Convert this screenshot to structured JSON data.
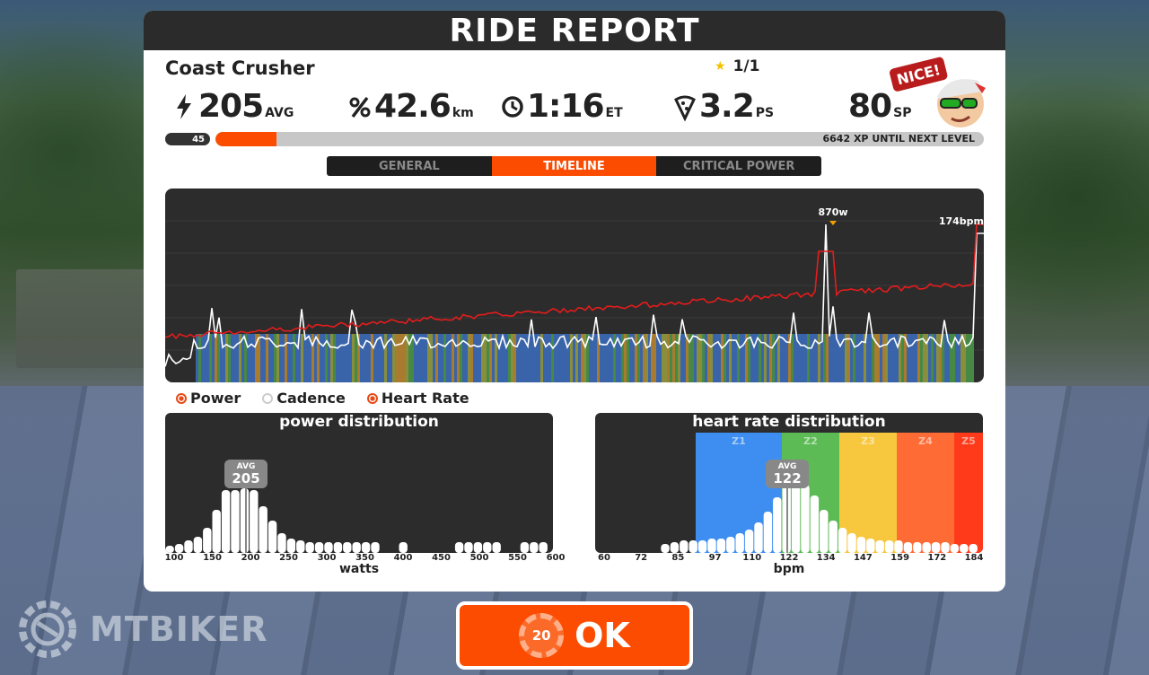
{
  "title": "RIDE REPORT",
  "route_name": "Coast Crusher",
  "stars": "1/1",
  "stats": {
    "power": {
      "value": "205",
      "unit": "AVG"
    },
    "distance": {
      "value": "42.6",
      "unit": "km"
    },
    "time": {
      "value": "1:16",
      "unit": "ET"
    },
    "pizza": {
      "value": "3.2",
      "unit": "PS"
    },
    "sp": {
      "value": "80",
      "unit": "SP"
    }
  },
  "avatar": {
    "badge": "NICE!"
  },
  "level": {
    "badge": "45",
    "xp_text": "6642 XP UNTIL NEXT LEVEL",
    "progress": 0.08
  },
  "tabs": [
    {
      "label": "GENERAL",
      "active": false
    },
    {
      "label": "TIMELINE",
      "active": true
    },
    {
      "label": "CRITICAL POWER",
      "active": false
    }
  ],
  "timeline": {
    "peak_power_label": "870w",
    "peak_hr_label": "174bpm"
  },
  "legend": [
    {
      "label": "Power",
      "enabled": true
    },
    {
      "label": "Cadence",
      "enabled": false
    },
    {
      "label": "Heart Rate",
      "enabled": true
    }
  ],
  "power_distribution": {
    "title": "power distribution",
    "avg_tag": "AVG",
    "avg_value": "205",
    "ticks": [
      "100",
      "150",
      "200",
      "250",
      "300",
      "350",
      "400",
      "450",
      "500",
      "550",
      "600"
    ],
    "xlabel": "watts"
  },
  "hr_distribution": {
    "title": "heart rate distribution",
    "avg_tag": "AVG",
    "avg_value": "122",
    "zones": [
      "Z1",
      "Z2",
      "Z3",
      "Z4",
      "Z5"
    ],
    "ticks": [
      "60",
      "72",
      "85",
      "97",
      "110",
      "122",
      "134",
      "147",
      "159",
      "172",
      "184"
    ],
    "xlabel": "bpm"
  },
  "ok_button": {
    "label": "OK",
    "countdown": "20"
  },
  "watermark": "MTBIKER",
  "colors": {
    "accent": "#fc4c02",
    "hr_line": "#e51c1c",
    "z1": "#3d8ef0",
    "z2": "#5cbb55",
    "z3": "#f7c73e",
    "z4": "#ff6b35",
    "z5": "#ff3a1a"
  }
}
